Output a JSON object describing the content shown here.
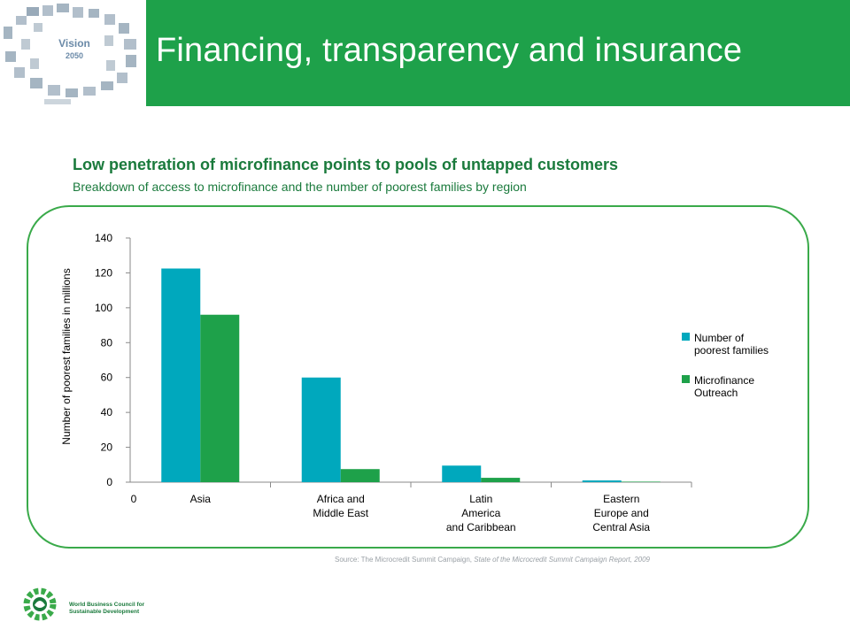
{
  "header": {
    "title": "Financing, transparency and insurance",
    "logo_text_line1": "Vision",
    "logo_text_line2": "2050"
  },
  "colors": {
    "header_green": "#1ea14a",
    "title_green": "#1a7a3c",
    "series_teal": "#00a8bd",
    "series_green": "#1ea14a"
  },
  "chart_data": {
    "type": "bar",
    "title": "Low penetration of microfinance points to pools of untapped customers",
    "subtitle": "Breakdown of access to microfinance and the number of poorest families by region",
    "ylabel": "Number of poorest families in millions",
    "ylim": [
      0,
      140
    ],
    "yticks": [
      "0",
      "20",
      "40",
      "60",
      "80",
      "100",
      "120",
      "140"
    ],
    "x_origin_label": "0",
    "categories": [
      [
        "Asia"
      ],
      [
        "Africa and",
        "Middle  East"
      ],
      [
        "Latin",
        "America",
        "and Caribbean"
      ],
      [
        "Eastern",
        "Europe and",
        "Central Asia"
      ]
    ],
    "series": [
      {
        "name": "Number of poorest families",
        "legend_lines": [
          "Number of",
          "poorest families"
        ],
        "values": [
          122.5,
          60.0,
          9.5,
          1.0
        ]
      },
      {
        "name": "Microfinance Outreach",
        "legend_lines": [
          "Microfinance",
          "Outreach"
        ],
        "values": [
          96.0,
          7.5,
          2.5,
          0.3
        ]
      }
    ],
    "grid": false,
    "legend_position": "right"
  },
  "source": {
    "prefix": "Source: The Microcredit Summit Campaign, ",
    "italic": "State of the Microcredit Summit Campaign Report, 2009"
  },
  "footer": {
    "org_line1": "World Business Council for",
    "org_line2": "Sustainable Development"
  }
}
